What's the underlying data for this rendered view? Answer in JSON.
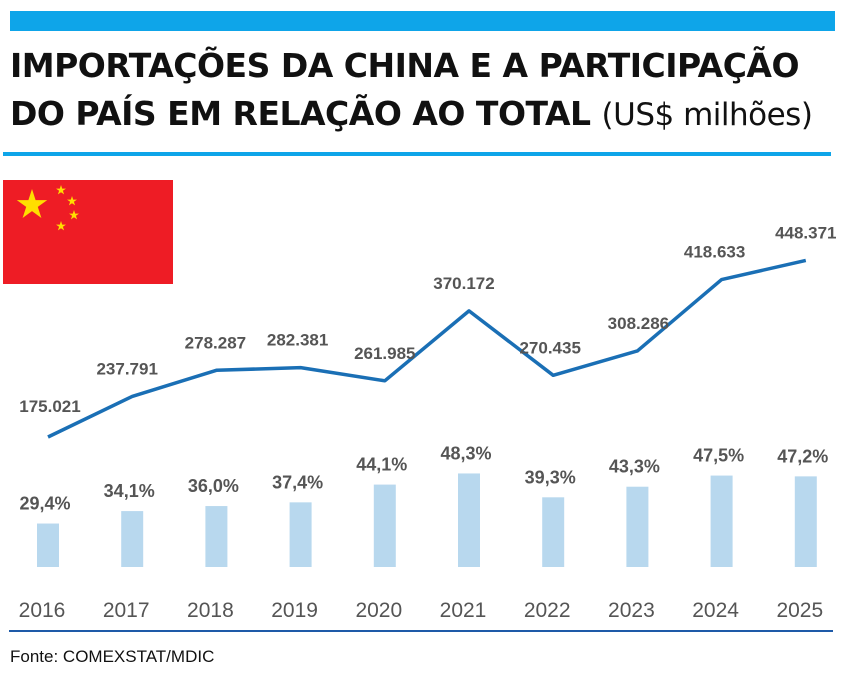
{
  "header": {
    "title_line1": "IMPORTAÇÕES DA CHINA E A PARTICIPAÇÃO",
    "title_line2": "DO PAÍS EM RELAÇÃO AO TOTAL",
    "title_unit": "(US$ milhões)"
  },
  "flag": {
    "icon": "china-flag-icon",
    "colors": {
      "red": "#ee1c25",
      "yellow": "#ffde00"
    }
  },
  "colors": {
    "accent": "#0ea5e9",
    "line": "#1a6fb5",
    "bar": "#b8d8ee",
    "label": "#555555",
    "rule": "#1e5aa8"
  },
  "chart_data": {
    "type": "line+bar",
    "categories": [
      "2016",
      "2017",
      "2018",
      "2019",
      "2020",
      "2021",
      "2022",
      "2023",
      "2024",
      "2025"
    ],
    "series": [
      {
        "type": "line",
        "values": [
          175.021,
          237.791,
          278.287,
          282.381,
          261.985,
          370.172,
          270.435,
          308.286,
          418.633,
          448.371
        ],
        "labels": [
          "175.021",
          "237.791",
          "278.287",
          "282.381",
          "261.985",
          "370.172",
          "270.435",
          "308.286",
          "418.633",
          "448.371"
        ]
      },
      {
        "type": "bar",
        "values": [
          29.4,
          34.1,
          36.0,
          37.4,
          44.1,
          48.3,
          39.3,
          43.3,
          47.5,
          47.2
        ],
        "labels": [
          "29,4%",
          "34,1%",
          "36,0%",
          "37,4%",
          "44,1%",
          "48,3%",
          "39,3%",
          "43,3%",
          "47,5%",
          "47,2%"
        ]
      }
    ],
    "grid": false,
    "legend": "none"
  },
  "footer": {
    "source": "Fonte: COMEXSTAT/MDIC"
  }
}
